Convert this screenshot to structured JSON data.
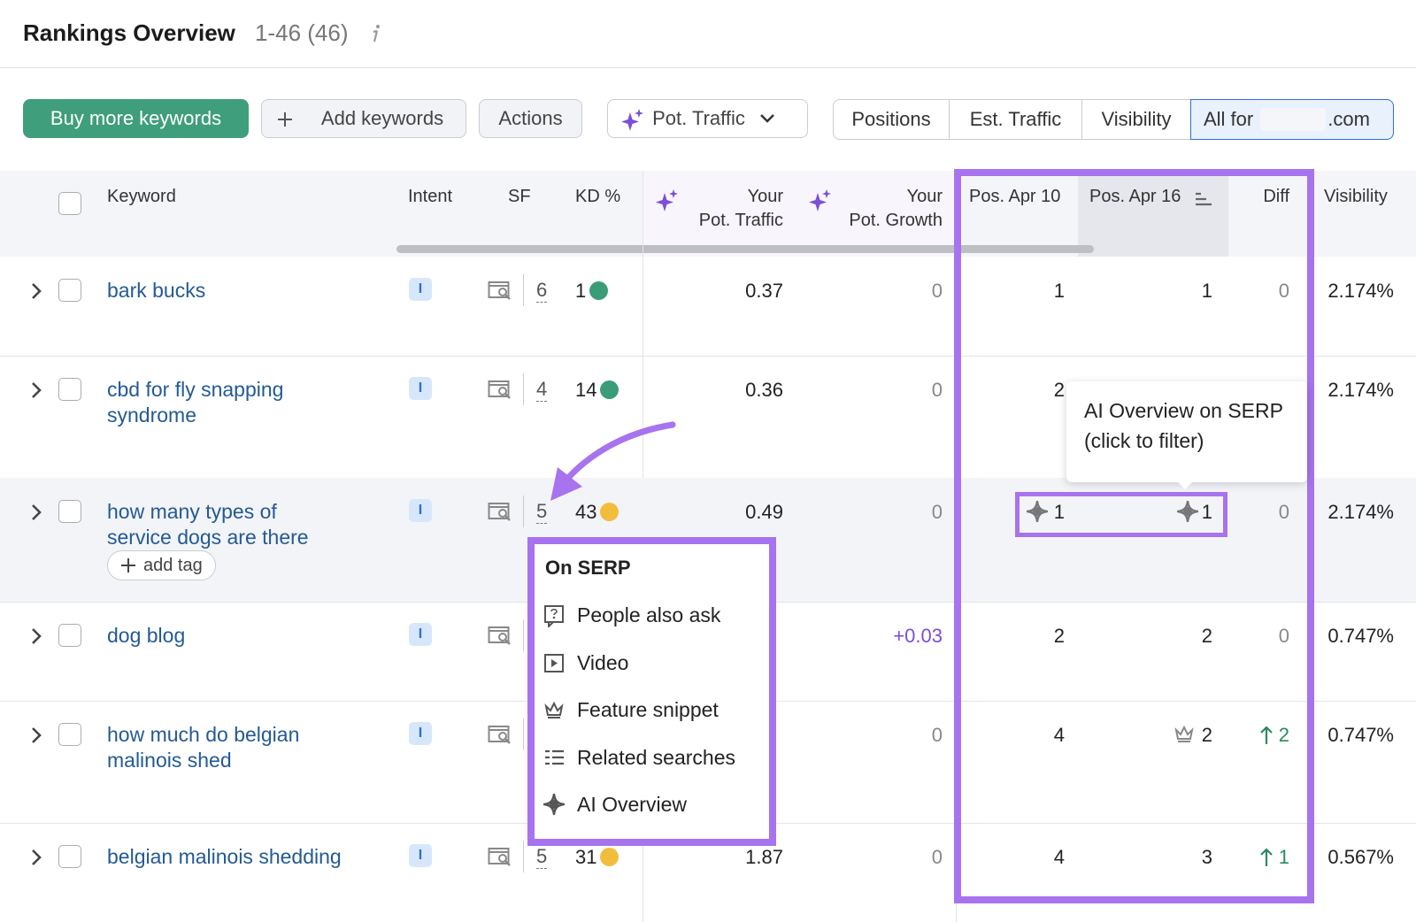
{
  "header": {
    "title": "Rankings Overview",
    "range": "1-46 (46)"
  },
  "toolbar": {
    "buttons": [
      "Buy more keywords",
      "Add keywords",
      "Actions"
    ],
    "metric_dropdown": "Pot. Traffic",
    "tabs": [
      "Positions",
      "Est. Traffic",
      "Visibility",
      "All for"
    ],
    "domain_suffix": ".com"
  },
  "table": {
    "columns": [
      "Keyword",
      "Intent",
      "SF",
      "KD %",
      [
        "Your",
        "Pot. Traffic"
      ],
      [
        "Your",
        "Pot. Growth"
      ],
      "Pos. Apr 10",
      "Pos. Apr 16",
      "Diff",
      "Visibility"
    ],
    "rows": [
      {
        "keyword": [
          "bark bucks"
        ],
        "intent": "I",
        "sf": "6",
        "kd": "1",
        "kd_color": "#3a9d77",
        "pot_traffic": "0.37",
        "pot_growth": "0",
        "pos_apr10": "1",
        "pos_apr16": "1",
        "diff": "0",
        "visibility": "2.174%"
      },
      {
        "keyword": [
          "cbd for fly snapping",
          "syndrome"
        ],
        "intent": "I",
        "sf": "4",
        "kd": "14",
        "kd_color": "#3a9d77",
        "pot_traffic": "0.36",
        "pot_growth": "0",
        "pos_apr10": "2",
        "pos_apr16": null,
        "diff": null,
        "visibility": "2.174%"
      },
      {
        "keyword": [
          "how many types of",
          "service dogs are there"
        ],
        "intent": "I",
        "sf": "5",
        "kd": "43",
        "kd_color": "#f3bd3c",
        "pot_traffic": "0.49",
        "pot_growth": "0",
        "pos_apr10": "1",
        "pos_apr16": "1",
        "diff": "0",
        "visibility": "2.174%",
        "tag": "add tag"
      },
      {
        "keyword": [
          "dog blog"
        ],
        "intent": "I",
        "sf": null,
        "kd": null,
        "pot_traffic": null,
        "pot_growth": "+0.03",
        "pos_apr10": "2",
        "pos_apr16": "2",
        "diff": "0",
        "visibility": "0.747%"
      },
      {
        "keyword": [
          "how much do belgian",
          "malinois shed"
        ],
        "intent": "I",
        "sf": null,
        "kd": null,
        "pot_traffic": null,
        "pot_growth": "0",
        "pos_apr10": "4",
        "pos_apr16": "2",
        "diff": "2",
        "diff_trend": "up",
        "visibility": "0.747%"
      },
      {
        "keyword": [
          "belgian malinois shedding"
        ],
        "intent": "I",
        "sf": "5",
        "kd": "31",
        "kd_color": "#f3bd3c",
        "pot_traffic": "1.87",
        "pot_growth": "0",
        "pos_apr10": "4",
        "pos_apr16": "3",
        "diff": "1",
        "diff_trend": "up",
        "visibility": "0.567%"
      }
    ]
  },
  "tooltip": {
    "lines": [
      "AI Overview on SERP",
      "(click to filter)"
    ]
  },
  "serp_popup": {
    "title": "On SERP",
    "items": [
      "People also ask",
      "Video",
      "Feature snippet",
      "Related searches",
      "AI Overview"
    ]
  }
}
